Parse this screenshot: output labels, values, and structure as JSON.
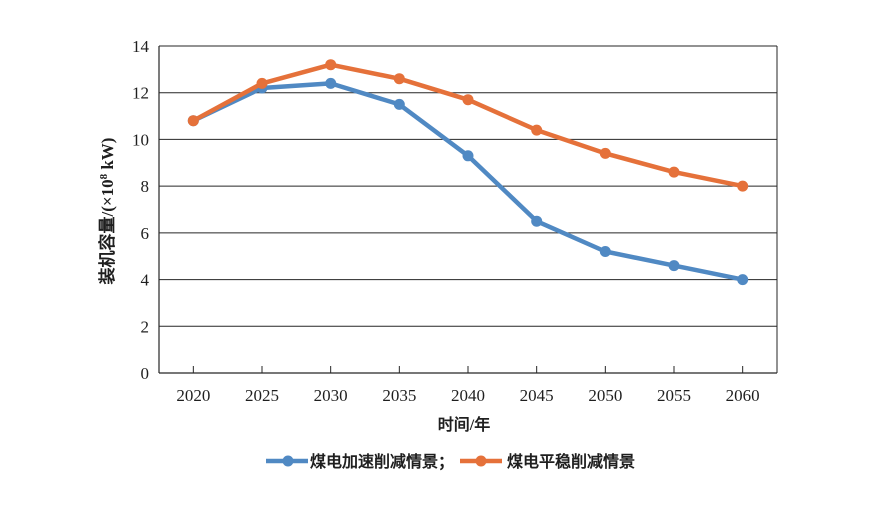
{
  "chart_data": {
    "type": "line",
    "title": "",
    "categories": [
      "2020",
      "2025",
      "2030",
      "2035",
      "2040",
      "2045",
      "2050",
      "2055",
      "2060"
    ],
    "series": [
      {
        "name": "煤电加速削减情景；",
        "color": "#5089c3",
        "values": [
          10.8,
          12.2,
          12.4,
          11.5,
          9.3,
          6.5,
          5.2,
          4.6,
          4.0
        ]
      },
      {
        "name": "煤电平稳削减情景",
        "color": "#e5713a",
        "values": [
          10.8,
          12.4,
          13.2,
          12.6,
          11.7,
          10.4,
          9.4,
          8.6,
          8.0
        ]
      }
    ],
    "xlabel": "时间/年",
    "ylabel": "装机容量/(×10⁸ kW)",
    "ylabel_parts": {
      "base": "装机容量/(×10",
      "superscript": "8",
      "tail": " kW)"
    },
    "ylim": [
      0,
      14
    ],
    "yticks": [
      0,
      2,
      4,
      6,
      8,
      10,
      12,
      14
    ],
    "grid": true,
    "legend_position": "bottom",
    "axis_color": "#262626",
    "text_color": "#1f1f1f",
    "background_color": "#ffffff"
  }
}
